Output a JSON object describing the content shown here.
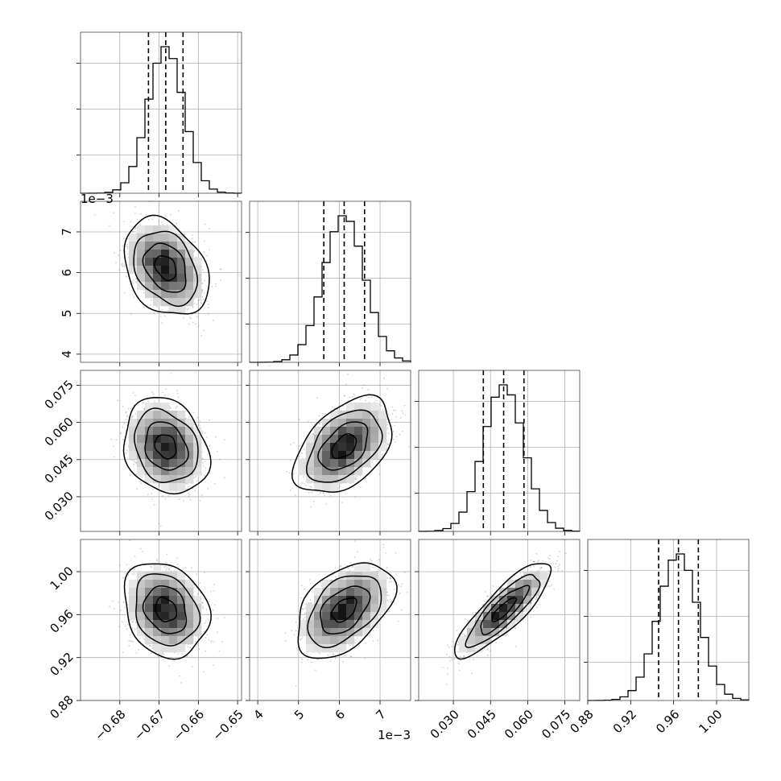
{
  "chart_data": {
    "type": "corner",
    "grid": true,
    "parameters": [
      {
        "id": "p0",
        "mean": -0.6683,
        "sigma": 0.0045,
        "quantiles": [
          -0.6727,
          -0.6683,
          -0.6639
        ],
        "range": [
          -0.69,
          -0.649
        ],
        "ticks": [
          -0.68,
          -0.67,
          -0.66,
          -0.65
        ],
        "tick_labels": [
          "−0.68",
          "−0.67",
          "−0.66",
          "−0.65"
        ],
        "offset_label": ""
      },
      {
        "id": "p1",
        "mean": 0.00612,
        "sigma": 0.0005,
        "quantiles": [
          0.00562,
          0.00612,
          0.00662
        ],
        "range": [
          0.0038,
          0.00775
        ],
        "ticks": [
          0.004,
          0.005,
          0.006,
          0.007
        ],
        "tick_labels": [
          "4",
          "5",
          "6",
          "7"
        ],
        "offset_label": "1e−3"
      },
      {
        "id": "p2",
        "mean": 0.0503,
        "sigma": 0.0081,
        "quantiles": [
          0.0421,
          0.0503,
          0.0585
        ],
        "range": [
          0.016,
          0.081
        ],
        "ticks": [
          0.03,
          0.045,
          0.06,
          0.075
        ],
        "tick_labels": [
          "0.030",
          "0.045",
          "0.060",
          "0.075"
        ],
        "offset_label": ""
      },
      {
        "id": "p3",
        "mean": 0.9645,
        "sigma": 0.0185,
        "quantiles": [
          0.946,
          0.9645,
          0.983
        ],
        "range": [
          0.88,
          1.03
        ],
        "ticks": [
          0.88,
          0.92,
          0.96,
          1.0
        ],
        "tick_labels": [
          "0.88",
          "0.92",
          "0.96",
          "1.00"
        ],
        "offset_label": ""
      }
    ],
    "correlations": {
      "1,0": -0.3,
      "2,0": -0.2,
      "2,1": 0.45,
      "3,0": -0.2,
      "3,1": 0.45,
      "3,2": 0.85
    },
    "histogram_bins": 20,
    "contour_levels_sigma": [
      0.5,
      1.0,
      1.5,
      2.0
    ],
    "colors": {
      "ink": "#000000",
      "scatter": "#777777",
      "grid": "#b0b0b0"
    }
  }
}
